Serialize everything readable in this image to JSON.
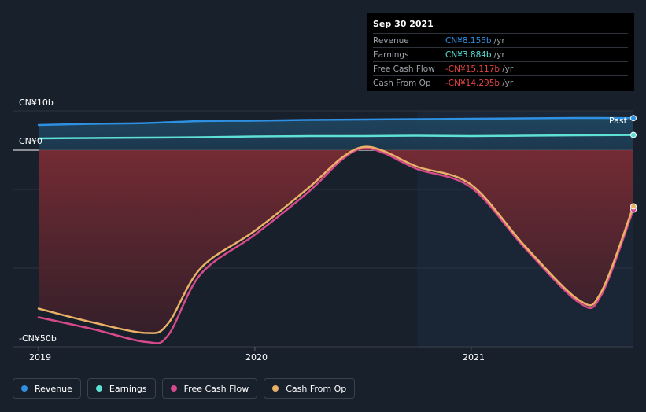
{
  "chart_data": {
    "type": "area",
    "x_range": [
      "2019-01",
      "2021-10"
    ],
    "ylim": [
      -50,
      10
    ],
    "y_unit": "CN¥b",
    "y_tick_labels": [
      "CN¥10b",
      "CN¥0",
      "-CN¥50b"
    ],
    "x_tick_labels": [
      "2019",
      "2020",
      "2021"
    ],
    "x_ticks": [
      2019.0,
      2020.0,
      2021.0
    ],
    "past_label": "Past",
    "forecast_shade_start": 2020.75,
    "series": [
      {
        "name": "Revenue",
        "color": "#2f8fe0",
        "x": [
          2019.0,
          2019.25,
          2019.5,
          2019.75,
          2020.0,
          2020.25,
          2020.5,
          2020.75,
          2021.0,
          2021.25,
          2021.5,
          2021.75
        ],
        "values": [
          6.4,
          6.7,
          6.9,
          7.4,
          7.5,
          7.7,
          7.8,
          7.9,
          8.0,
          8.1,
          8.2,
          8.155
        ]
      },
      {
        "name": "Earnings",
        "color": "#5ee0d4",
        "x": [
          2019.0,
          2019.25,
          2019.5,
          2019.75,
          2020.0,
          2020.25,
          2020.5,
          2020.75,
          2021.0,
          2021.25,
          2021.5,
          2021.75
        ],
        "values": [
          3.0,
          3.1,
          3.2,
          3.3,
          3.5,
          3.6,
          3.6,
          3.7,
          3.6,
          3.7,
          3.8,
          3.884
        ]
      },
      {
        "name": "Free Cash Flow",
        "color": "#d6498a",
        "x": [
          2019.0,
          2019.25,
          2019.5,
          2019.6,
          2019.75,
          2020.0,
          2020.25,
          2020.4,
          2020.5,
          2020.6,
          2020.75,
          2021.0,
          2021.25,
          2021.5,
          2021.6,
          2021.75
        ],
        "values": [
          -42.5,
          -45.5,
          -48.8,
          -47.0,
          -31.5,
          -21.5,
          -10.5,
          -2.5,
          0.5,
          -0.8,
          -4.8,
          -9.5,
          -25.0,
          -38.8,
          -37.0,
          -15.117
        ]
      },
      {
        "name": "Cash From Op",
        "color": "#eab066",
        "x": [
          2019.0,
          2019.25,
          2019.5,
          2019.6,
          2019.75,
          2020.0,
          2020.25,
          2020.4,
          2020.5,
          2020.6,
          2020.75,
          2021.0,
          2021.25,
          2021.5,
          2021.6,
          2021.75
        ],
        "values": [
          -40.3,
          -43.8,
          -46.5,
          -44.0,
          -30.0,
          -20.5,
          -9.5,
          -2.0,
          0.8,
          -0.3,
          -4.2,
          -8.8,
          -24.5,
          -38.2,
          -36.2,
          -14.295
        ]
      }
    ]
  },
  "tooltip": {
    "date": "Sep 30 2021",
    "rows": [
      {
        "label": "Revenue",
        "value": "CN¥8.155b",
        "unit": "/yr",
        "color": "#2f8fe0"
      },
      {
        "label": "Earnings",
        "value": "CN¥3.884b",
        "unit": "/yr",
        "color": "#5ee0d4"
      },
      {
        "label": "Free Cash Flow",
        "value": "-CN¥15.117b",
        "unit": "/yr",
        "color": "#e64545"
      },
      {
        "label": "Cash From Op",
        "value": "-CN¥14.295b",
        "unit": "/yr",
        "color": "#e64545"
      }
    ]
  },
  "legend": [
    {
      "label": "Revenue",
      "color": "#2f8fe0"
    },
    {
      "label": "Earnings",
      "color": "#5ee0d4"
    },
    {
      "label": "Free Cash Flow",
      "color": "#d6498a"
    },
    {
      "label": "Cash From Op",
      "color": "#eab066"
    }
  ]
}
